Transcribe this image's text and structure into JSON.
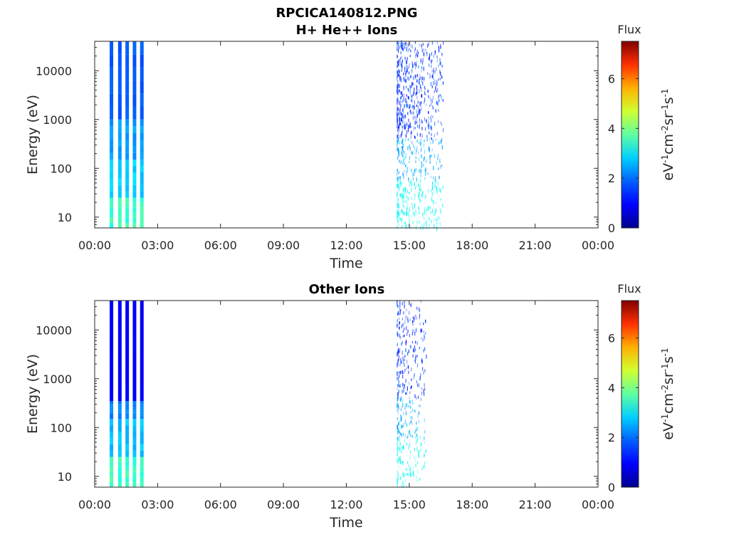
{
  "figure": {
    "title_line1": "RPCICA140812.PNG",
    "title_line2": "H+ He++ Ions"
  },
  "colors": {
    "axis": "#262626",
    "colormap": [
      "#00008f",
      "#0000ff",
      "#0080ff",
      "#00ffff",
      "#80ff80",
      "#ffff00",
      "#ff8000",
      "#ff0000",
      "#800000"
    ]
  },
  "chart_data": [
    {
      "type": "heatmap",
      "title": "",
      "xlabel": "Time",
      "ylabel": "Energy (eV)",
      "x_ticks": [
        "00:00",
        "03:00",
        "06:00",
        "09:00",
        "12:00",
        "15:00",
        "18:00",
        "21:00",
        "00:00"
      ],
      "y_scale": "log",
      "y_ticks": [
        "10",
        "100",
        "1000",
        "10000"
      ],
      "ylim": [
        6,
        40000
      ],
      "colorbar": {
        "title": "Flux",
        "ticks": [
          "0",
          "2",
          "4",
          "6"
        ],
        "range": [
          0,
          7.5
        ],
        "unit_label": "eV-1cm-2sr-1s-1"
      },
      "stripes_hours": [
        0.8,
        1.2,
        1.55,
        1.9,
        2.25
      ],
      "stripe_bands": [
        {
          "e_low": 6,
          "e_high": 25,
          "flux": 3.2
        },
        {
          "e_low": 25,
          "e_high": 150,
          "flux": 2.5
        },
        {
          "e_low": 150,
          "e_high": 1000,
          "flux": 2.1
        },
        {
          "e_low": 1000,
          "e_high": 40000,
          "flux": 1.6
        }
      ],
      "scatter_window_hours": [
        14.4,
        16.6
      ],
      "grid": false
    },
    {
      "type": "heatmap",
      "title": "Other Ions",
      "xlabel": "Time",
      "ylabel": "Energy (eV)",
      "x_ticks": [
        "00:00",
        "03:00",
        "06:00",
        "09:00",
        "12:00",
        "15:00",
        "18:00",
        "21:00",
        "00:00"
      ],
      "y_scale": "log",
      "y_ticks": [
        "10",
        "100",
        "1000",
        "10000"
      ],
      "ylim": [
        6,
        40000
      ],
      "colorbar": {
        "title": "Flux",
        "ticks": [
          "0",
          "2",
          "4",
          "6"
        ],
        "range": [
          0,
          7.5
        ],
        "unit_label": "eV-1cm-2sr-1s-1"
      },
      "stripes_hours": [
        0.8,
        1.2,
        1.55,
        1.9,
        2.25
      ],
      "stripe_bands": [
        {
          "e_low": 6,
          "e_high": 25,
          "flux": 3.2
        },
        {
          "e_low": 25,
          "e_high": 150,
          "flux": 2.4
        },
        {
          "e_low": 150,
          "e_high": 350,
          "flux": 1.9
        },
        {
          "e_low": 350,
          "e_high": 40000,
          "flux": 0.9
        }
      ],
      "scatter_window_hours": [
        14.4,
        15.8
      ],
      "grid": false
    }
  ]
}
